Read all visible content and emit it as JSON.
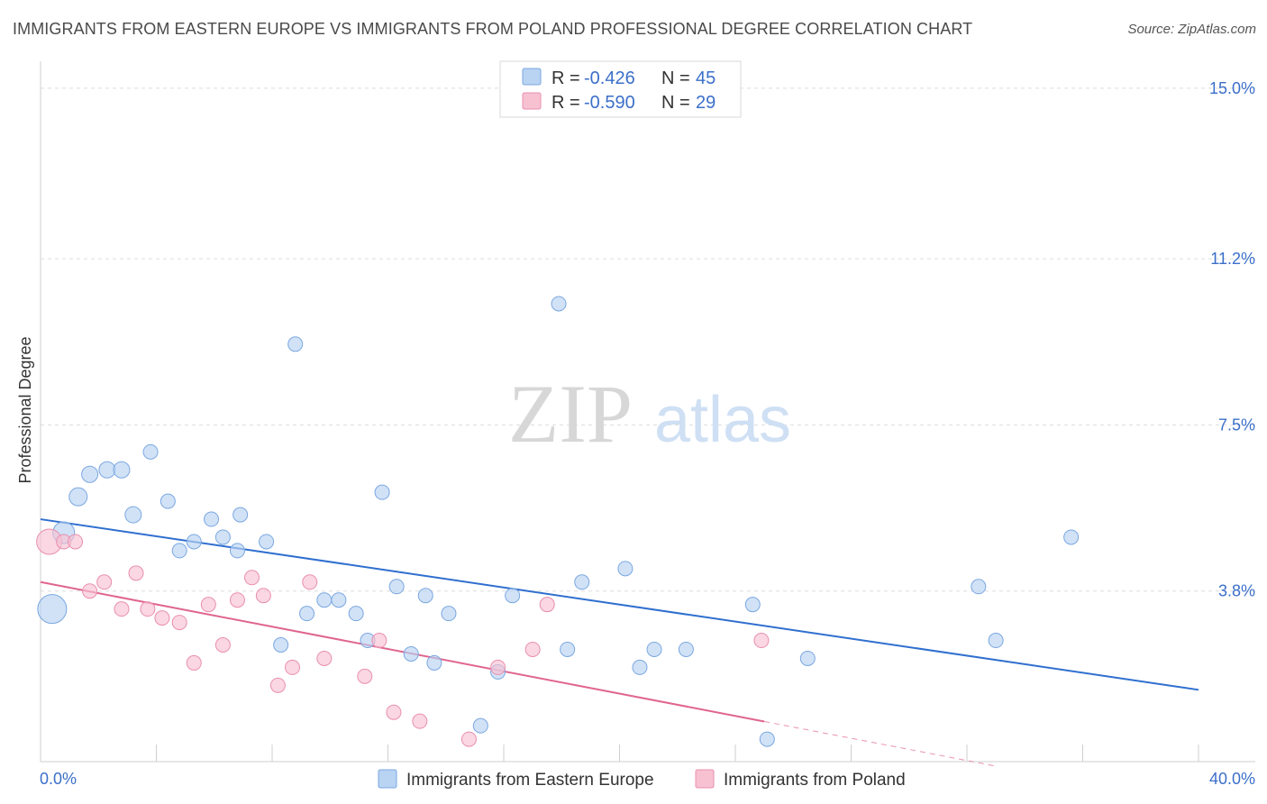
{
  "header": {
    "title": "IMMIGRANTS FROM EASTERN EUROPE VS IMMIGRANTS FROM POLAND PROFESSIONAL DEGREE CORRELATION CHART",
    "source": "Source: ZipAtlas.com"
  },
  "watermark": {
    "zip": "ZIP",
    "atlas": "atlas"
  },
  "colors": {
    "blue_fill": "#b9d3f2",
    "blue_stroke": "#7aa7e0",
    "blue_line": "#2f6fcf",
    "pink_fill": "#f7c1d2",
    "pink_stroke": "#e98fad",
    "pink_line": "#e0658f",
    "tick_label": "#3b6fc9"
  },
  "legend": {
    "rows": [
      {
        "r_label": "R =",
        "r_value": "-0.426",
        "n_label": "N =",
        "n_value": "45"
      },
      {
        "r_label": "R =",
        "r_value": "-0.590",
        "n_label": "N =",
        "n_value": "29"
      }
    ]
  },
  "bottom_legend": [
    "Immigrants from Eastern Europe",
    "Immigrants from Poland"
  ],
  "chart_data": {
    "type": "scatter",
    "title": "IMMIGRANTS FROM EASTERN EUROPE VS IMMIGRANTS FROM POLAND PROFESSIONAL DEGREE CORRELATION CHART",
    "xlabel": "",
    "ylabel": "Professional Degree",
    "xlim": [
      0,
      40
    ],
    "ylim": [
      0,
      15.4
    ],
    "x_tick_labels": [
      "0.0%",
      "40.0%"
    ],
    "y_ticks": [
      3.8,
      7.5,
      11.2,
      15.0
    ],
    "y_tick_labels": [
      "3.8%",
      "7.5%",
      "11.2%",
      "15.0%"
    ],
    "grid": true,
    "legend_position": "top-center",
    "series": [
      {
        "name": "Immigrants from Eastern Europe",
        "color": "#7aa7e0",
        "points": [
          [
            0.4,
            3.4,
            16
          ],
          [
            0.8,
            5.1,
            12
          ],
          [
            1.3,
            5.9,
            10
          ],
          [
            1.7,
            6.4,
            9
          ],
          [
            2.3,
            6.5,
            9
          ],
          [
            2.8,
            6.5,
            9
          ],
          [
            3.2,
            5.5,
            9
          ],
          [
            3.8,
            6.9,
            8
          ],
          [
            4.4,
            5.8,
            8
          ],
          [
            4.8,
            4.7,
            8
          ],
          [
            5.3,
            4.9,
            8
          ],
          [
            5.9,
            5.4,
            8
          ],
          [
            6.3,
            5.0,
            8
          ],
          [
            6.8,
            4.7,
            8
          ],
          [
            6.9,
            5.5,
            8
          ],
          [
            7.8,
            4.9,
            8
          ],
          [
            8.3,
            2.6,
            8
          ],
          [
            8.8,
            9.3,
            8
          ],
          [
            9.2,
            3.3,
            8
          ],
          [
            9.8,
            3.6,
            8
          ],
          [
            10.3,
            3.6,
            8
          ],
          [
            10.9,
            3.3,
            8
          ],
          [
            11.3,
            2.7,
            8
          ],
          [
            11.8,
            6.0,
            8
          ],
          [
            12.3,
            3.9,
            8
          ],
          [
            12.8,
            2.4,
            8
          ],
          [
            13.3,
            3.7,
            8
          ],
          [
            13.6,
            2.2,
            8
          ],
          [
            14.1,
            3.3,
            8
          ],
          [
            15.2,
            0.8,
            8
          ],
          [
            15.8,
            2.0,
            8
          ],
          [
            16.3,
            3.7,
            8
          ],
          [
            17.9,
            10.2,
            8
          ],
          [
            18.2,
            2.5,
            8
          ],
          [
            18.7,
            4.0,
            8
          ],
          [
            20.2,
            4.3,
            8
          ],
          [
            20.7,
            2.1,
            8
          ],
          [
            21.2,
            2.5,
            8
          ],
          [
            22.3,
            2.5,
            8
          ],
          [
            24.6,
            3.5,
            8
          ],
          [
            25.1,
            0.5,
            8
          ],
          [
            26.5,
            2.3,
            8
          ],
          [
            32.4,
            3.9,
            8
          ],
          [
            33.0,
            2.7,
            8
          ],
          [
            35.6,
            5.0,
            8
          ]
        ]
      },
      {
        "name": "Immigrants from Poland",
        "color": "#e98fad",
        "points": [
          [
            0.3,
            4.9,
            14
          ],
          [
            0.8,
            4.9,
            8
          ],
          [
            1.2,
            4.9,
            8
          ],
          [
            1.7,
            3.8,
            8
          ],
          [
            2.2,
            4.0,
            8
          ],
          [
            2.8,
            3.4,
            8
          ],
          [
            3.3,
            4.2,
            8
          ],
          [
            3.7,
            3.4,
            8
          ],
          [
            4.2,
            3.2,
            8
          ],
          [
            4.8,
            3.1,
            8
          ],
          [
            5.3,
            2.2,
            8
          ],
          [
            5.8,
            3.5,
            8
          ],
          [
            6.3,
            2.6,
            8
          ],
          [
            6.8,
            3.6,
            8
          ],
          [
            7.3,
            4.1,
            8
          ],
          [
            7.7,
            3.7,
            8
          ],
          [
            8.2,
            1.7,
            8
          ],
          [
            8.7,
            2.1,
            8
          ],
          [
            9.3,
            4.0,
            8
          ],
          [
            9.8,
            2.3,
            8
          ],
          [
            11.2,
            1.9,
            8
          ],
          [
            11.7,
            2.7,
            8
          ],
          [
            12.2,
            1.1,
            8
          ],
          [
            13.1,
            0.9,
            8
          ],
          [
            14.8,
            0.5,
            8
          ],
          [
            15.8,
            2.1,
            8
          ],
          [
            17.0,
            2.5,
            8
          ],
          [
            17.5,
            3.5,
            8
          ],
          [
            24.9,
            2.7,
            8
          ]
        ]
      }
    ],
    "trend_lines": [
      {
        "series": "Immigrants from Eastern Europe",
        "x0": 0,
        "y0": 5.4,
        "x1": 40,
        "y1": 1.6,
        "dashed_from": null
      },
      {
        "series": "Immigrants from Poland",
        "x0": 0,
        "y0": 4.0,
        "x1": 33,
        "y1": -0.1,
        "dashed_from": 25
      }
    ]
  }
}
